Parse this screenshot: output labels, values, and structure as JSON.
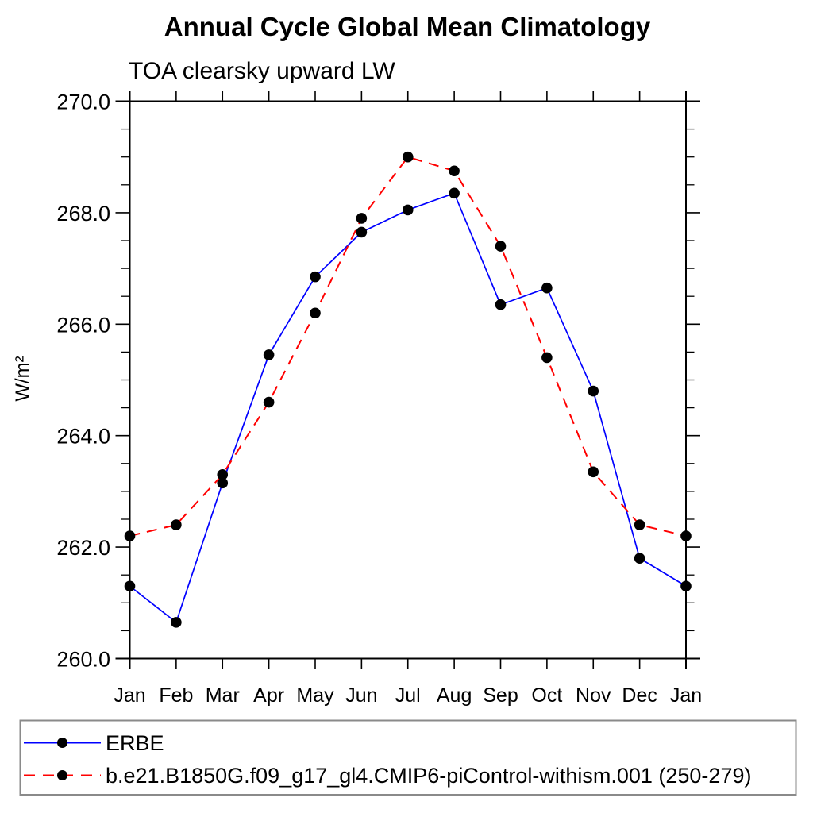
{
  "chart_data": {
    "type": "line",
    "title": "Annual Cycle Global Mean Climatology",
    "subtitle": "TOA clearsky upward LW",
    "ylabel": "W/m²",
    "xlabel": "",
    "categories": [
      "Jan",
      "Feb",
      "Mar",
      "Apr",
      "May",
      "Jun",
      "Jul",
      "Aug",
      "Sep",
      "Oct",
      "Nov",
      "Dec",
      "Jan"
    ],
    "ylim": [
      260.0,
      270.0
    ],
    "ytick_major": [
      260.0,
      262.0,
      264.0,
      266.0,
      268.0,
      270.0
    ],
    "ytick_labels": [
      "260.0",
      "262.0",
      "264.0",
      "266.0",
      "268.0",
      "270.0"
    ],
    "ytick_minor_step": 0.5,
    "grid": false,
    "legend_position": "bottom",
    "axis_color": "#000000",
    "series": [
      {
        "name": "ERBE",
        "color": "#0000ff",
        "style": "solid",
        "marker": "circle",
        "marker_color": "#000000",
        "values": [
          261.3,
          260.65,
          263.15,
          265.45,
          266.85,
          267.65,
          268.05,
          268.35,
          266.35,
          266.65,
          264.8,
          261.8,
          261.3
        ]
      },
      {
        "name": "b.e21.B1850G.f09_g17_gl4.CMIP6-piControl-withism.001 (250-279)",
        "color": "#ff0000",
        "style": "dashed",
        "marker": "circle",
        "marker_color": "#000000",
        "values": [
          262.2,
          262.4,
          263.3,
          264.6,
          266.2,
          267.9,
          269.0,
          268.75,
          267.4,
          265.4,
          263.35,
          262.4,
          262.2
        ]
      }
    ]
  }
}
